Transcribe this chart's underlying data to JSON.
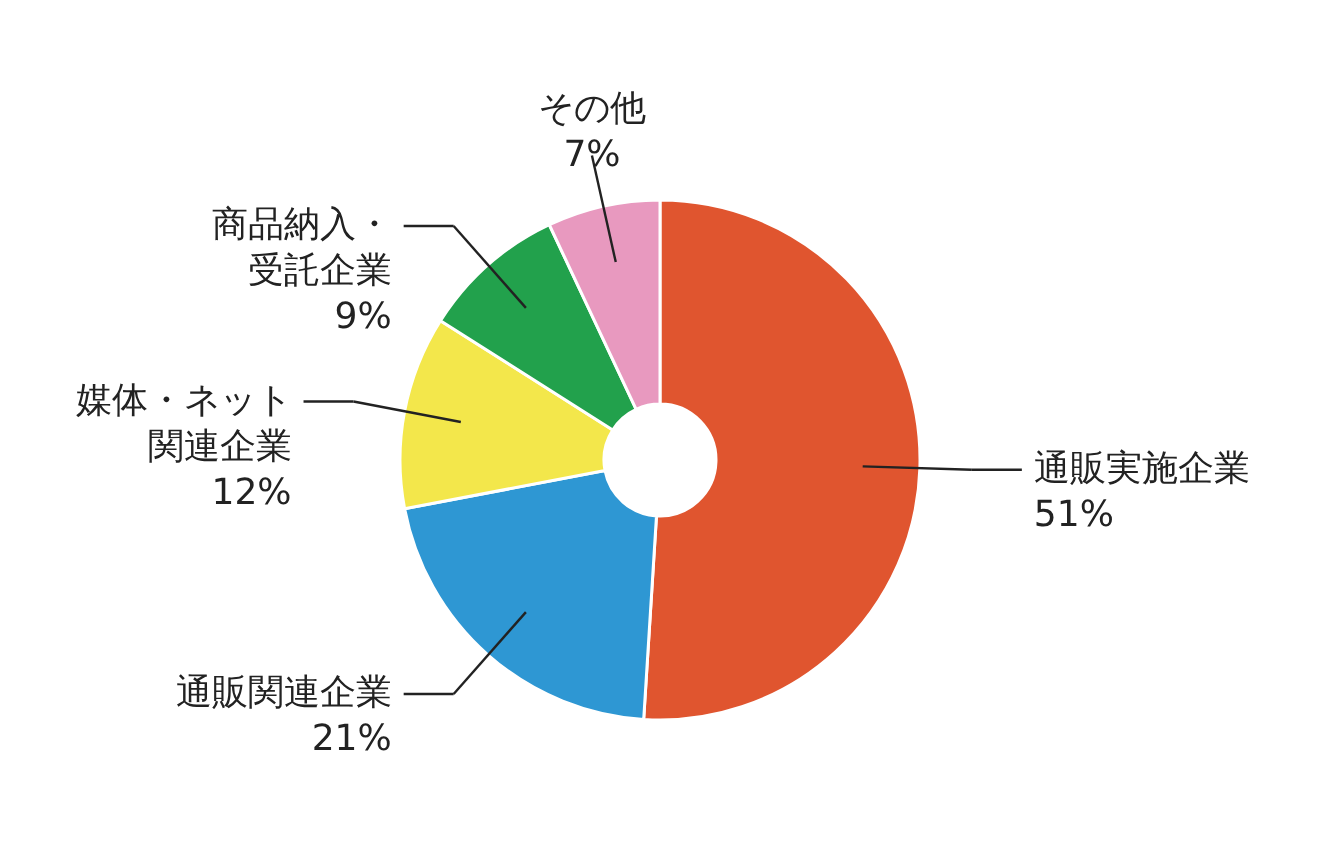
{
  "chart_data": {
    "type": "donut",
    "categories": [
      "通販実施企業",
      "通販関連企業",
      "媒体・ネット関連企業",
      "商品納入・受託企業",
      "その他"
    ],
    "values": [
      51,
      21,
      12,
      9,
      7
    ],
    "colors": [
      "#e0552f",
      "#2e97d3",
      "#f3e74b",
      "#22a14c",
      "#e899bf"
    ],
    "value_labels": [
      "51%",
      "21%",
      "12%",
      "9%",
      "7%"
    ]
  }
}
